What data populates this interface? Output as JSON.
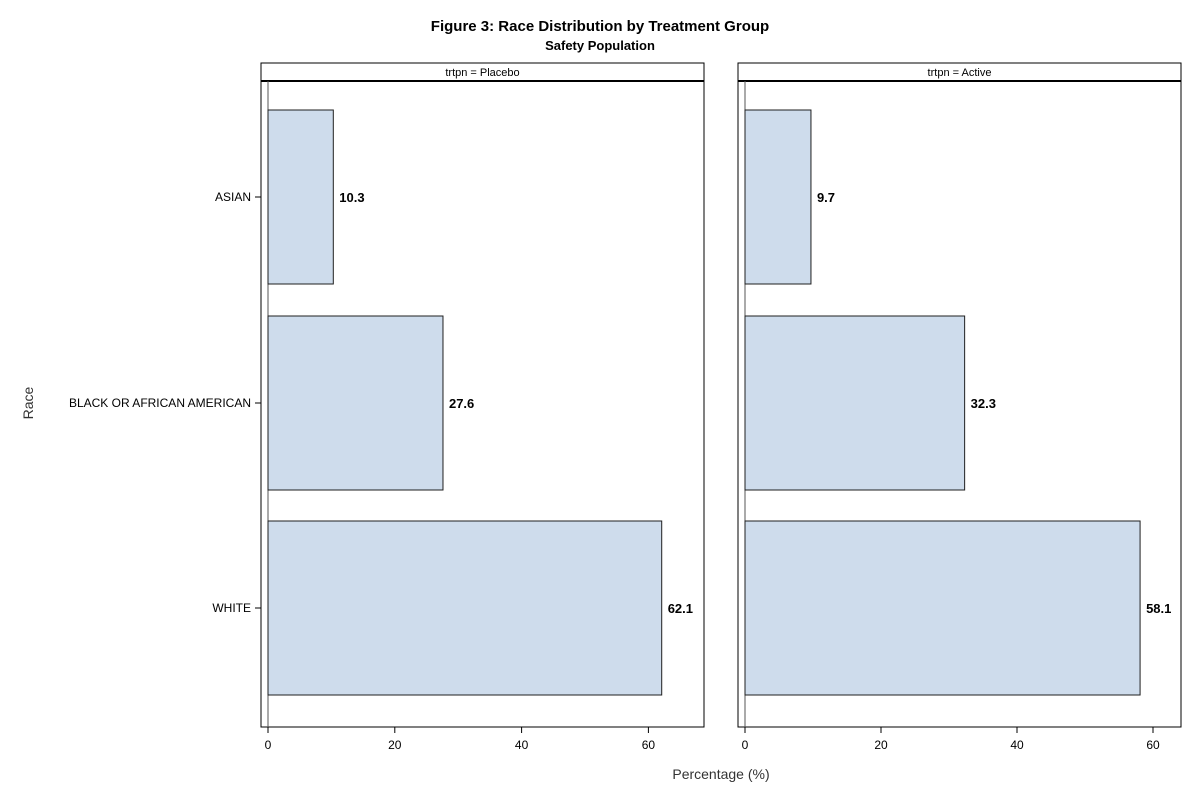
{
  "chart_data": {
    "type": "bar",
    "orientation": "horizontal",
    "title": "Figure 3: Race Distribution by Treatment Group",
    "subtitle": "Safety Population",
    "xlabel": "Percentage (%)",
    "ylabel": "Race",
    "xlim": [
      0,
      70
    ],
    "xticks": [
      0,
      20,
      40,
      60
    ],
    "categories": [
      "ASIAN",
      "BLACK OR AFRICAN AMERICAN",
      "WHITE"
    ],
    "panels": [
      {
        "header": "trtpn = Placebo",
        "values": [
          10.3,
          27.6,
          62.1
        ]
      },
      {
        "header": "trtpn = Active",
        "values": [
          9.7,
          32.3,
          58.1
        ]
      }
    ],
    "bar_fill": "#cedcec",
    "bar_stroke": "#1f1f1f",
    "grid": false,
    "legend": "none"
  }
}
